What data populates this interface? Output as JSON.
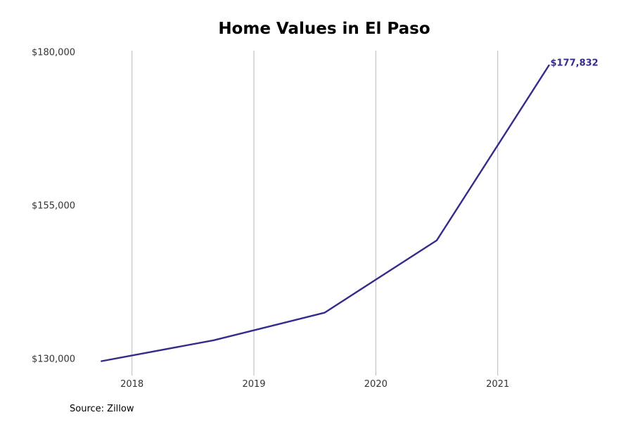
{
  "chart_data": {
    "type": "line",
    "title": "Home Values in El Paso",
    "xlabel": "",
    "ylabel": "",
    "xlim": [
      2017.5,
      2021.85
    ],
    "ylim": [
      130000,
      180000
    ],
    "x_ticks": [
      2018,
      2019,
      2020,
      2021
    ],
    "x_tick_labels": [
      "2018",
      "2019",
      "2020",
      "2021"
    ],
    "y_ticks": [
      130000,
      155000,
      180000
    ],
    "y_tick_labels": [
      "$130,000",
      "$155,000",
      "$180,000"
    ],
    "grid": "vertical",
    "series": [
      {
        "color": "#332c8a",
        "x": [
          2017.75,
          2018.67,
          2019.58,
          2020.5,
          2021.42
        ],
        "y": [
          129600,
          133000,
          137500,
          149300,
          177832
        ]
      }
    ],
    "annotations": [
      {
        "x": 2021.42,
        "y": 177832,
        "text": "$177,832",
        "color": "#332c8a"
      }
    ]
  },
  "footer": {
    "source": "Source: Zillow"
  }
}
